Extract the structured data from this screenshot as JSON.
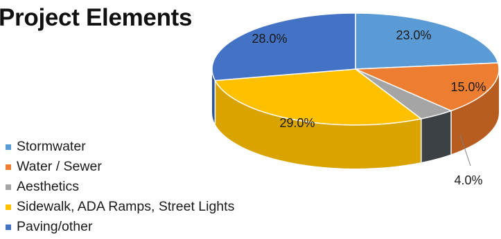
{
  "title": "Project Elements",
  "chart_data": {
    "type": "pie",
    "title": "Project Elements",
    "legend_position": "bottom-left",
    "series": [
      {
        "name": "Stormwater",
        "value": 23.0,
        "label": "23.0%",
        "color": "#5b9bd5",
        "side_color": "#3f78b0"
      },
      {
        "name": "Water / Sewer",
        "value": 15.0,
        "label": "15.0%",
        "color": "#ed7d31",
        "side_color": "#b85d20"
      },
      {
        "name": "Aesthetics",
        "value": 4.0,
        "label": "4.0%",
        "color": "#a5a5a5",
        "side_color": "#3c4146"
      },
      {
        "name": "Sidewalk, ADA Ramps, Street Lights",
        "value": 29.0,
        "label": "29.0%",
        "color": "#ffc000",
        "side_color": "#d9a300"
      },
      {
        "name": "Paving/other",
        "value": 28.0,
        "label": "28.0%",
        "color": "#4472c4",
        "side_color": "#2f5597"
      }
    ]
  }
}
